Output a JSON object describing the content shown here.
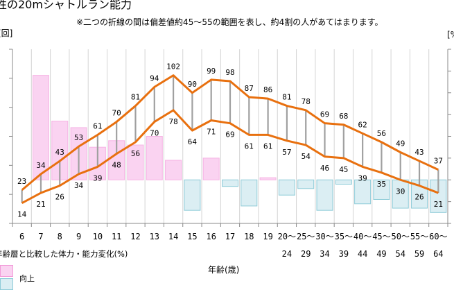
{
  "header": {
    "title": "性の20mシャトルラン能力",
    "note": "※二つの折線の間は偏差値約45～55の範囲を表し、約4割の人があてはまります。",
    "left_unit": "[回]",
    "right_unit": "[%"
  },
  "legend": {
    "title": "年齢層と比較した体力・能力変化(%)",
    "items": [
      {
        "label": "向上",
        "color": "#fad3f1"
      },
      {
        "label": "",
        "color": "#dbeef3"
      }
    ]
  },
  "chart_data": {
    "type": "line+bar",
    "xlabel": "年齢(歳)",
    "categories": [
      [
        "6",
        ""
      ],
      [
        "7",
        ""
      ],
      [
        "8",
        ""
      ],
      [
        "9",
        ""
      ],
      [
        "10",
        ""
      ],
      [
        "11",
        ""
      ],
      [
        "12",
        ""
      ],
      [
        "13",
        ""
      ],
      [
        "14",
        ""
      ],
      [
        "15",
        ""
      ],
      [
        "16",
        ""
      ],
      [
        "17",
        ""
      ],
      [
        "18",
        ""
      ],
      [
        "19",
        ""
      ],
      [
        "20～",
        "24"
      ],
      [
        "25～",
        "29"
      ],
      [
        "30～",
        "34"
      ],
      [
        "35～",
        "39"
      ],
      [
        "40～",
        "44"
      ],
      [
        "45～",
        "49"
      ],
      [
        "50～",
        "54"
      ],
      [
        "55～",
        "59"
      ],
      [
        "60～",
        "64"
      ]
    ],
    "left_axis": {
      "unit": "[回]",
      "ylim": [
        0,
        120
      ],
      "tick_step": 20
    },
    "right_axis": {
      "unit": "[%",
      "ylim": [
        -20,
        60
      ],
      "tick_step": 10
    },
    "grid": "vertical",
    "series": [
      {
        "role": "upper",
        "axis": "left",
        "color": "#e8700f",
        "values": [
          23,
          34,
          43,
          53,
          61,
          70,
          81,
          94,
          102,
          90,
          99,
          98,
          87,
          86,
          81,
          78,
          69,
          68,
          62,
          56,
          49,
          43,
          37
        ]
      },
      {
        "role": "lower",
        "axis": "left",
        "color": "#e8700f",
        "values": [
          14,
          21,
          26,
          34,
          39,
          48,
          56,
          70,
          78,
          64,
          71,
          69,
          61,
          61,
          57,
          54,
          46,
          45,
          39,
          35,
          30,
          26,
          21
        ]
      }
    ],
    "bars": {
      "axis": "right",
      "positive_color": "#fad3f1",
      "negative_color": "#dbeef3",
      "values": [
        null,
        48,
        27,
        24,
        15,
        18,
        16,
        20,
        9,
        -14,
        10,
        -3,
        -12,
        1,
        -7,
        -4,
        -14,
        -2,
        -11,
        -9,
        -13,
        -13,
        -15
      ]
    }
  }
}
